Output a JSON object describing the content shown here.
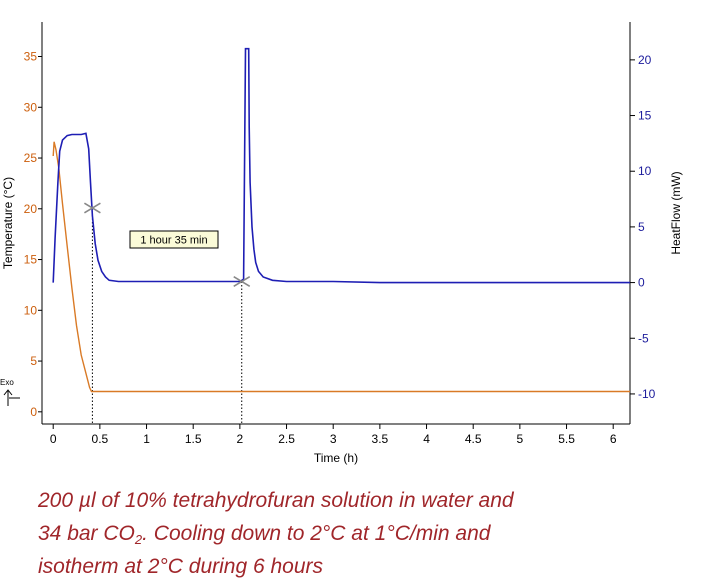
{
  "chart_data": {
    "type": "line",
    "xlabel": "Time (h)",
    "x_ticks": [
      0,
      0.5,
      1,
      1.5,
      2,
      2.5,
      3,
      3.5,
      4,
      4.5,
      5,
      5.5,
      6
    ],
    "x_tick_labels": [
      "0",
      "0.5",
      "1",
      "1.5",
      "2",
      "2.5",
      "3",
      "3.5",
      "4",
      "4.5",
      "5",
      "5.5",
      "6"
    ],
    "xlim": [
      -0.12,
      6.18
    ],
    "y_left": {
      "label": "Temperature (°C)",
      "ticks": [
        0,
        5,
        10,
        15,
        20,
        25,
        30,
        35
      ],
      "tick_labels": [
        "0",
        "5",
        "10",
        "15",
        "20",
        "25",
        "30",
        "35"
      ],
      "ylim": [
        -1.2,
        38.4
      ],
      "color": "#cc5e0c"
    },
    "y_right": {
      "label": "HeatFlow (mW)",
      "ticks": [
        -10,
        -5,
        0,
        5,
        10,
        15,
        20
      ],
      "tick_labels": [
        "-10",
        "-5",
        "0",
        "5",
        "10",
        "15",
        "20"
      ],
      "ylim": [
        -12.7,
        23.4
      ],
      "color": "#1c1c9c"
    },
    "series": [
      {
        "name": "Temperature",
        "axis": "left",
        "color": "#d97a26",
        "x": [
          0,
          0.01,
          0.03,
          0.06,
          0.1,
          0.15,
          0.2,
          0.25,
          0.3,
          0.35,
          0.39,
          0.41,
          0.45,
          1,
          2,
          3,
          4,
          5,
          6,
          6.18
        ],
        "y": [
          25.2,
          26.6,
          25.8,
          24,
          20.5,
          16.3,
          12.2,
          8.5,
          5.6,
          3.8,
          2.4,
          2.0,
          2.0,
          2.0,
          2.0,
          2.0,
          2.0,
          2.0,
          2.0,
          2.0
        ]
      },
      {
        "name": "HeatFlow",
        "axis": "right",
        "color": "#1e1eb4",
        "x": [
          0,
          0.02,
          0.05,
          0.07,
          0.1,
          0.15,
          0.2,
          0.25,
          0.3,
          0.35,
          0.38,
          0.4,
          0.42,
          0.45,
          0.48,
          0.52,
          0.56,
          0.6,
          0.7,
          0.9,
          1.2,
          1.5,
          1.8,
          2.0,
          2.04,
          2.06,
          2.08,
          2.095,
          2.1,
          2.11,
          2.13,
          2.15,
          2.17,
          2.2,
          2.25,
          2.35,
          2.5,
          3,
          3.5,
          4,
          5,
          6,
          6.18
        ],
        "y": [
          0,
          4,
          9,
          11.8,
          12.8,
          13.2,
          13.3,
          13.3,
          13.3,
          13.4,
          12,
          9,
          6,
          3.5,
          2,
          1,
          0.5,
          0.2,
          0.1,
          0.1,
          0.1,
          0.1,
          0.1,
          0.1,
          0.3,
          21,
          21,
          21,
          14,
          9,
          5,
          3,
          1.8,
          1,
          0.5,
          0.2,
          0.1,
          0.1,
          0,
          0,
          0,
          0,
          0
        ]
      }
    ],
    "markers": [
      {
        "name": "start-marker",
        "x": 0.42,
        "y_right": 6.7
      },
      {
        "name": "end-marker",
        "x": 2.02,
        "y_right": 0.1
      }
    ],
    "annotation": "1 hour 35 min",
    "exo_label": "Exo"
  },
  "caption": {
    "line1": "200 µl of 10% tetrahydrofuran solution in water and",
    "line2_before": "34 bar CO",
    "line2_sub": "2",
    "line2_after": ". Cooling down to 2°C at 1°C/min and",
    "line3": "isotherm at 2°C during 6 hours"
  }
}
